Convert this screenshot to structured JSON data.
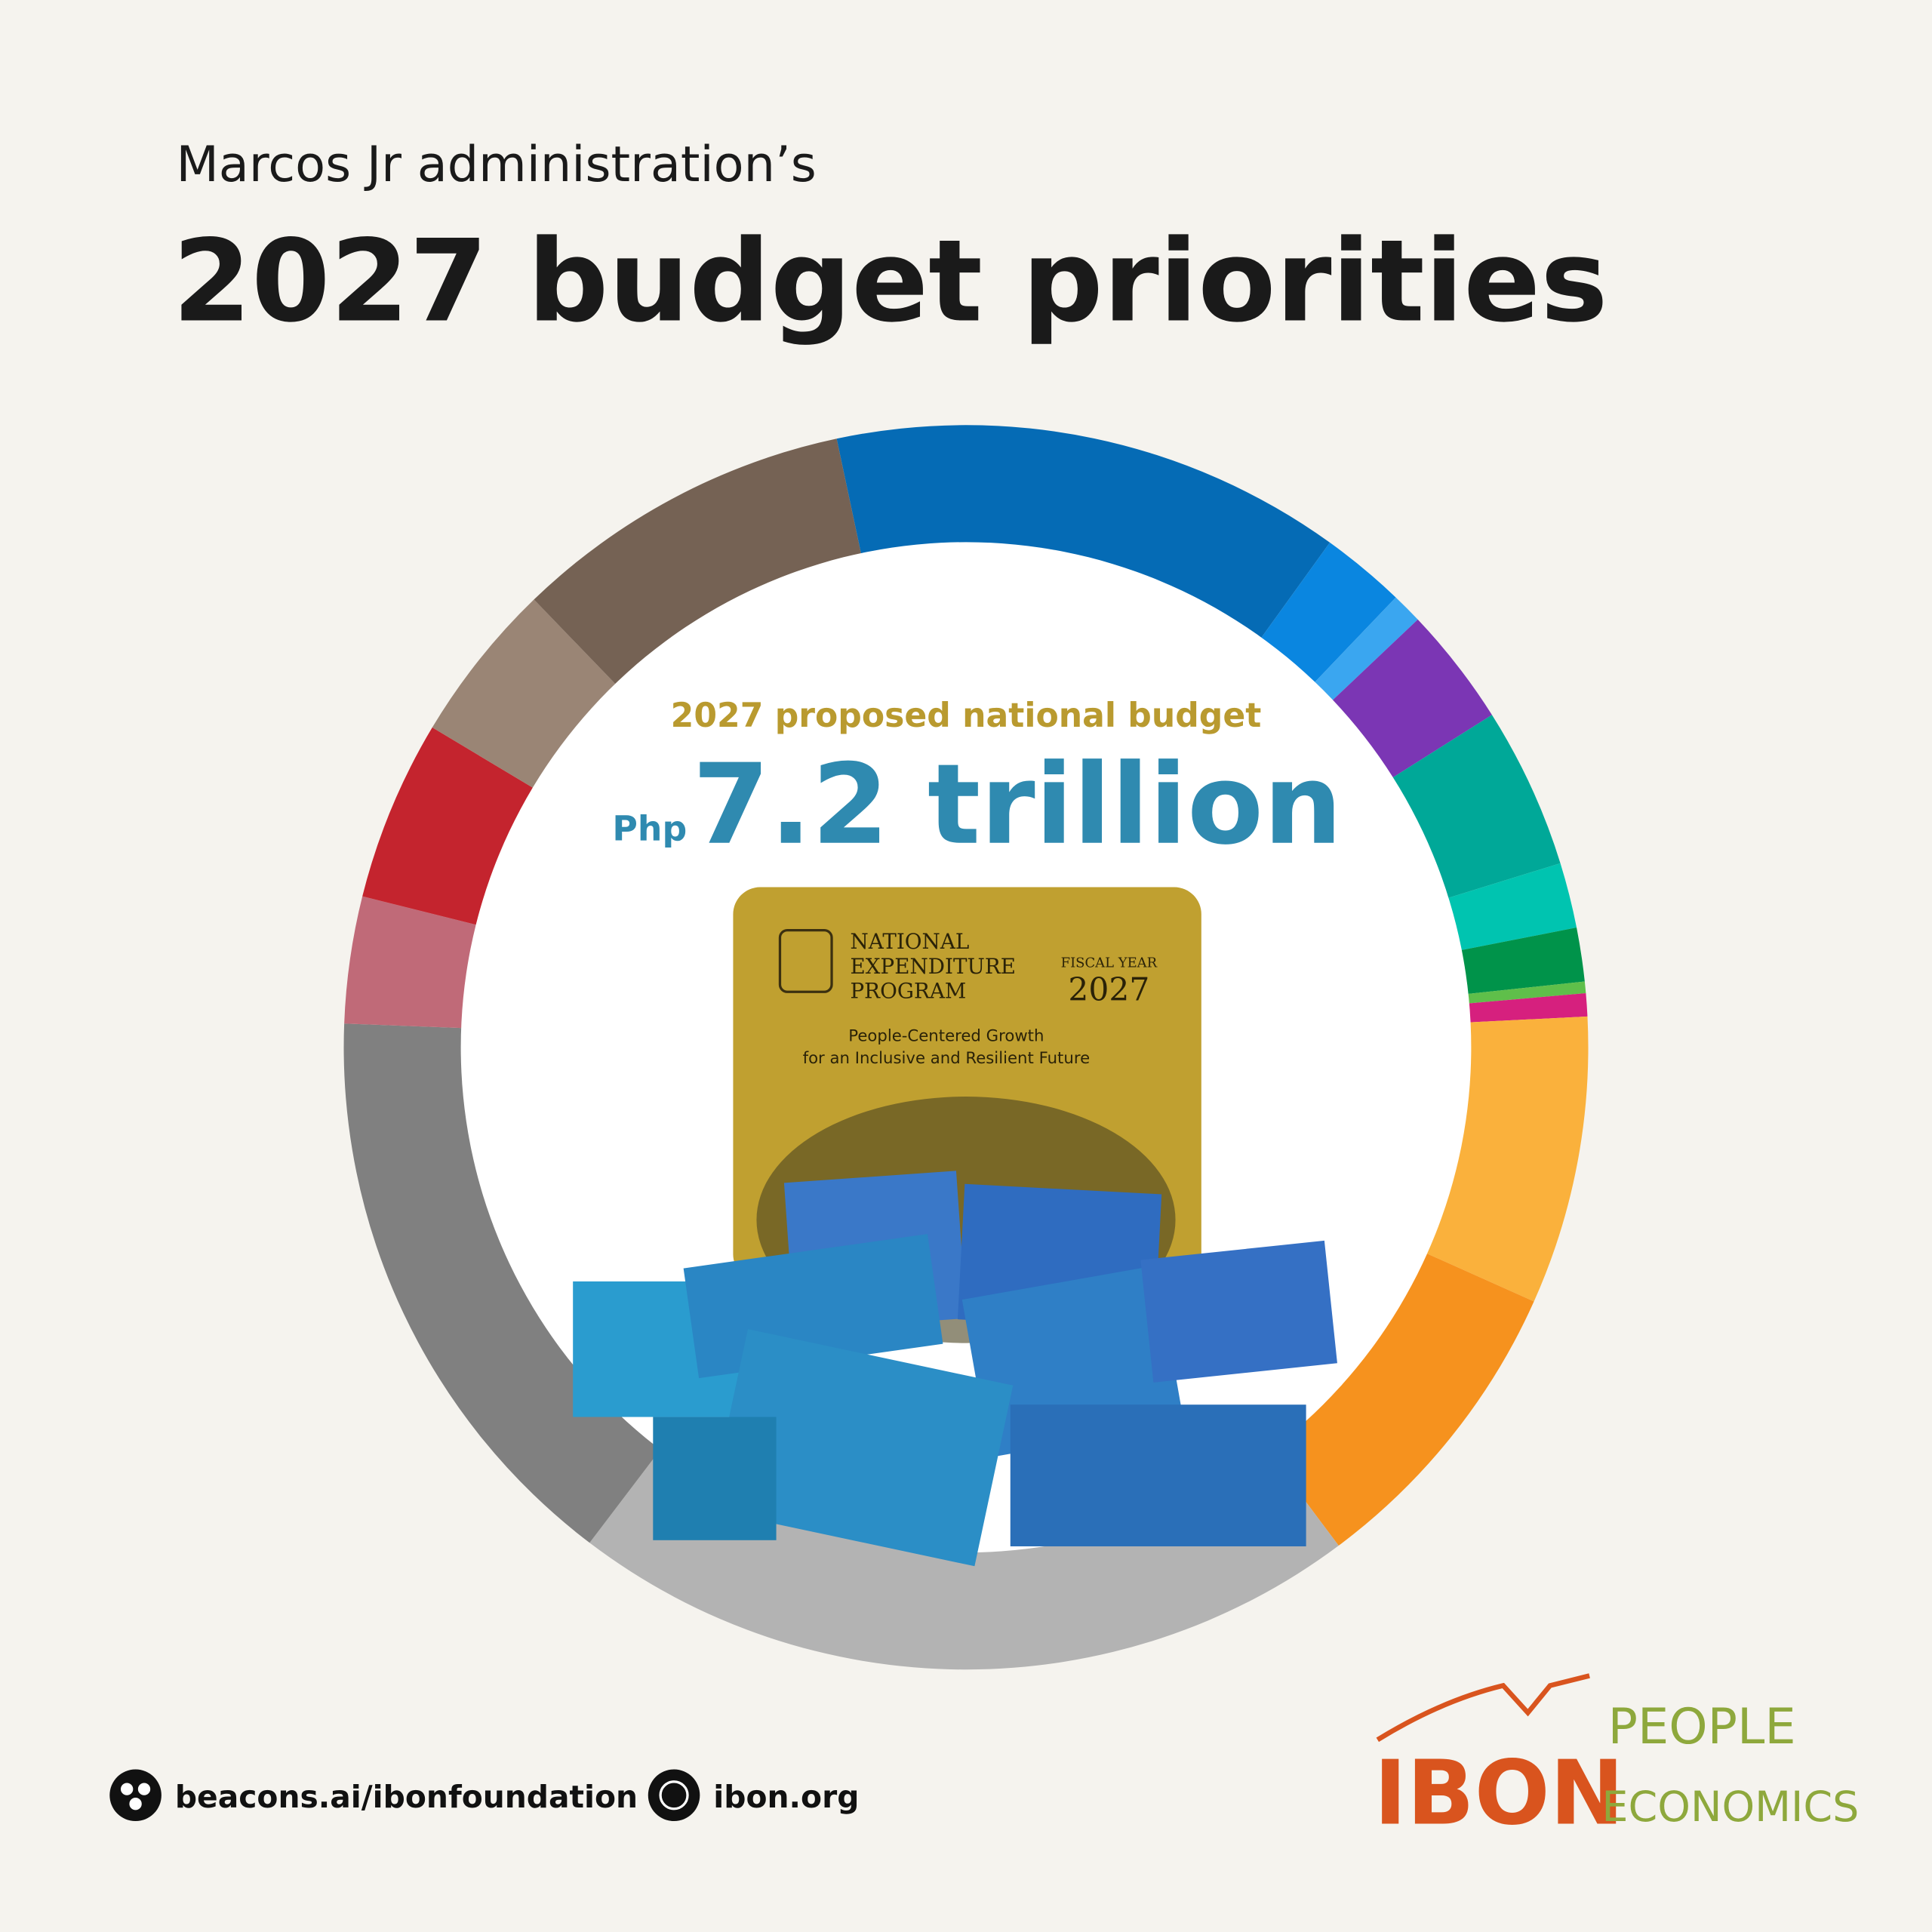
{
  "chart_data": {
    "type": "donut",
    "subtitle": "Marcos Jr administration’s",
    "title": "2027 budget priorities",
    "center_caption": "2027 proposed national budget",
    "center_prefix": "Php",
    "center_value": "7.2 trillion",
    "categories": [
      null,
      null,
      null,
      null,
      null,
      null,
      null,
      null,
      null,
      null,
      null,
      null,
      null,
      null,
      null,
      null,
      null
    ],
    "values": [
      13.3,
      2.2,
      0.8,
      3.1,
      4.2,
      1.7,
      1.4,
      0.3,
      0.6,
      7.5,
      8.1,
      20.6,
      15.3,
      3.3,
      4.7,
      4.2,
      8.9
    ],
    "colors": [
      "#056bb5",
      "#0a86e0",
      "#3aa6f0",
      "#7b36b4",
      "#00a898",
      "#00c4b0",
      "#00934a",
      "#5fbf4a",
      "#d6207e",
      "#fab13c",
      "#f6921e",
      "#b3b3b3",
      "#808080",
      "#c06a78",
      "#c4242e",
      "#9a8575",
      "#756254"
    ]
  },
  "cover": {
    "lines": [
      "NATIONAL",
      "EXPENDITURE",
      "PROGRAM"
    ],
    "fiscal_label": "FISCAL YEAR",
    "fiscal_year": "2027",
    "tagline": [
      "People-Centered Growth",
      "for an Inclusive and Resilient Future"
    ]
  },
  "footer": {
    "links": [
      "beacons.ai/ibonfoundation",
      "ibon.org"
    ],
    "logo": "IBON",
    "logo2": [
      "PEOPLE",
      "ECONOMICS"
    ]
  }
}
